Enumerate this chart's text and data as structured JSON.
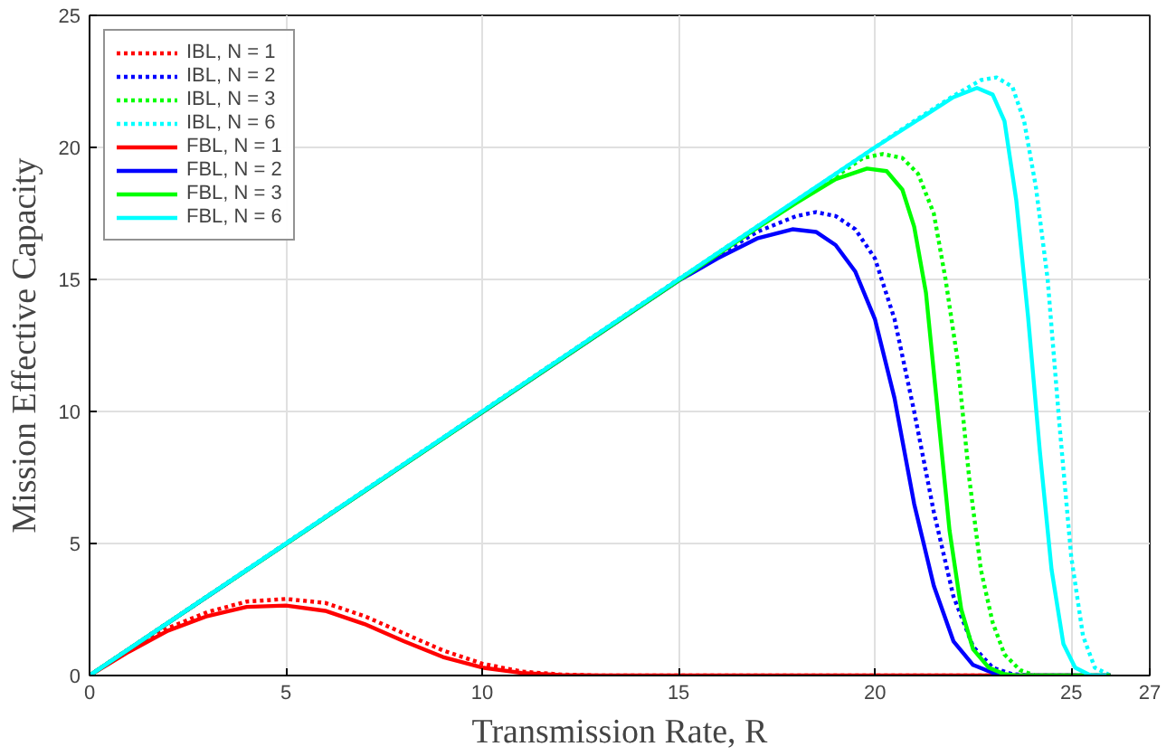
{
  "chart_data": {
    "type": "line",
    "xlabel": "Transmission Rate, R",
    "ylabel": "Mission Effective Capacity",
    "xlim": [
      0,
      27
    ],
    "ylim": [
      0,
      25
    ],
    "xticks": [
      0,
      5,
      10,
      15,
      20,
      25,
      27
    ],
    "yticks": [
      0,
      5,
      10,
      15,
      20,
      25
    ],
    "grid": true,
    "legend": "top left",
    "marker": "none",
    "series": [
      {
        "name": "IBL, N = 1",
        "color": "#ff0000",
        "line_style": "dotted",
        "x": [
          0,
          1,
          2,
          3,
          4,
          5,
          6,
          7,
          8,
          9,
          10,
          11,
          12,
          13,
          26
        ],
        "values": [
          0,
          0.95,
          1.8,
          2.4,
          2.8,
          2.9,
          2.75,
          2.25,
          1.6,
          0.95,
          0.45,
          0.15,
          0.04,
          0,
          0
        ]
      },
      {
        "name": "IBL, N = 2",
        "color": "#0000ff",
        "line_style": "dotted",
        "x": [
          0,
          15,
          16,
          17,
          18,
          18.5,
          19,
          19.5,
          20,
          20.5,
          21,
          21.5,
          22,
          22.5,
          23,
          23.5,
          24,
          26
        ],
        "values": [
          0,
          15,
          15.9,
          16.8,
          17.4,
          17.55,
          17.4,
          16.9,
          15.8,
          13.5,
          10,
          6.2,
          3,
          1.1,
          0.3,
          0.05,
          0,
          0
        ]
      },
      {
        "name": "IBL, N = 3",
        "color": "#00ff00",
        "line_style": "dotted",
        "x": [
          0,
          17,
          18,
          19,
          19.7,
          20.2,
          20.7,
          21.1,
          21.5,
          21.8,
          22.1,
          22.4,
          22.7,
          23,
          23.3,
          23.7,
          24.1,
          26
        ],
        "values": [
          0,
          17,
          17.95,
          18.9,
          19.6,
          19.75,
          19.6,
          19,
          17.5,
          15,
          12,
          7.5,
          4,
          2,
          0.8,
          0.2,
          0,
          0
        ]
      },
      {
        "name": "IBL, N = 6",
        "color": "#00ffff",
        "line_style": "dotted",
        "x": [
          0,
          21,
          22,
          22.7,
          23.1,
          23.5,
          23.8,
          24.1,
          24.4,
          24.7,
          25,
          25.3,
          25.6,
          26
        ],
        "values": [
          0,
          21,
          21.95,
          22.55,
          22.65,
          22.3,
          21,
          18.5,
          15,
          9.5,
          4.5,
          1.5,
          0.3,
          0
        ]
      },
      {
        "name": "FBL, N = 1",
        "color": "#ff0000",
        "line_style": "solid",
        "x": [
          0,
          1,
          2,
          3,
          4,
          5,
          6,
          7,
          8,
          9,
          10,
          11,
          12,
          13,
          26
        ],
        "values": [
          0,
          0.9,
          1.7,
          2.25,
          2.6,
          2.65,
          2.45,
          1.95,
          1.3,
          0.7,
          0.3,
          0.1,
          0.02,
          0,
          0
        ]
      },
      {
        "name": "FBL, N = 2",
        "color": "#0000ff",
        "line_style": "solid",
        "x": [
          0,
          15,
          16,
          17,
          17.9,
          18.5,
          19,
          19.5,
          20,
          20.5,
          21,
          21.5,
          22,
          22.5,
          23,
          23.5,
          26
        ],
        "values": [
          0,
          14.95,
          15.8,
          16.55,
          16.9,
          16.8,
          16.3,
          15.3,
          13.5,
          10.5,
          6.5,
          3.4,
          1.3,
          0.4,
          0.1,
          0,
          0
        ]
      },
      {
        "name": "FBL, N = 3",
        "color": "#00ff00",
        "line_style": "solid",
        "x": [
          0,
          17,
          18,
          19,
          19.8,
          20.3,
          20.7,
          21,
          21.3,
          21.6,
          21.9,
          22.2,
          22.5,
          22.9,
          23.3,
          23.6,
          26
        ],
        "values": [
          0,
          16.95,
          17.9,
          18.8,
          19.2,
          19.1,
          18.4,
          17,
          14.5,
          10,
          5.5,
          2.5,
          1,
          0.3,
          0.05,
          0,
          0
        ]
      },
      {
        "name": "FBL, N = 6",
        "color": "#00ffff",
        "line_style": "solid",
        "x": [
          0,
          20,
          21,
          22,
          22.6,
          23,
          23.3,
          23.6,
          23.9,
          24.2,
          24.5,
          24.8,
          25.1,
          25.5,
          25.9
        ],
        "values": [
          0,
          20,
          20.95,
          21.9,
          22.25,
          22,
          21,
          18,
          13.6,
          8.5,
          4,
          1.2,
          0.3,
          0,
          0
        ]
      }
    ]
  }
}
